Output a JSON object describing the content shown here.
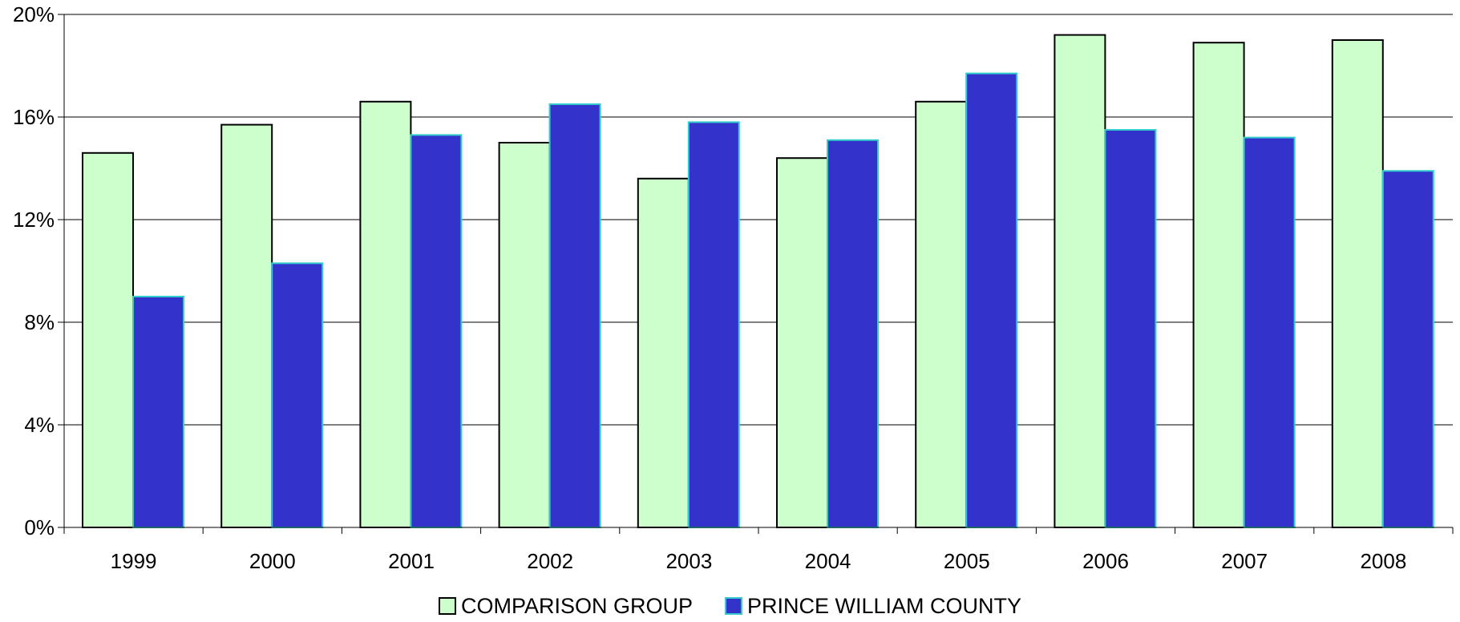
{
  "colors": {
    "comparison_fill": "#ccffcc",
    "comparison_stroke": "#000000",
    "county_fill": "#3333cc",
    "county_stroke": "#33cccc",
    "grid": "#000000"
  },
  "chart_data": {
    "type": "bar",
    "categories": [
      "1999",
      "2000",
      "2001",
      "2002",
      "2003",
      "2004",
      "2005",
      "2006",
      "2007",
      "2008"
    ],
    "series": [
      {
        "name": "COMPARISON GROUP",
        "values": [
          14.6,
          15.7,
          16.6,
          15.0,
          13.6,
          14.4,
          16.6,
          19.2,
          18.9,
          19.0
        ]
      },
      {
        "name": "PRINCE WILLIAM COUNTY",
        "values": [
          9.0,
          10.3,
          15.3,
          16.5,
          15.8,
          15.1,
          17.7,
          15.5,
          15.2,
          13.9
        ]
      }
    ],
    "ylim": [
      0,
      20
    ],
    "yticks": [
      "0%",
      "4%",
      "8%",
      "12%",
      "16%",
      "20%"
    ],
    "ytick_values": [
      0,
      4,
      8,
      12,
      16,
      20
    ],
    "grid": true,
    "legend_position": "bottom-center"
  }
}
